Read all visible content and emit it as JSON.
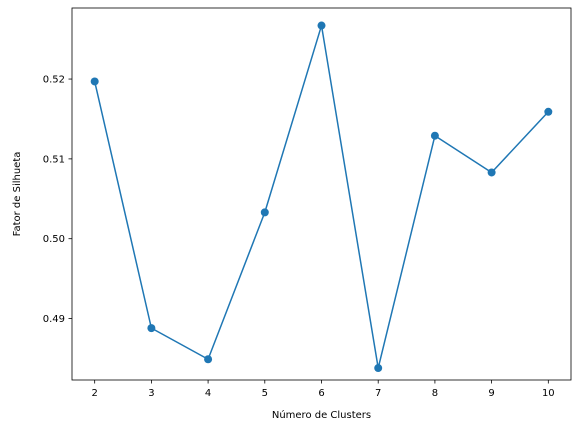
{
  "chart_data": {
    "type": "line",
    "title": "",
    "xlabel": "Número de Clusters",
    "ylabel": "Fator de Silhueta",
    "x": [
      2,
      3,
      4,
      5,
      6,
      7,
      8,
      9,
      10
    ],
    "series": [
      {
        "values": [
          0.5197,
          0.4888,
          0.4849,
          0.5033,
          0.5267,
          0.4838,
          0.5129,
          0.5083,
          0.5159
        ],
        "color": "#1f77b4",
        "marker": "circle"
      }
    ],
    "xlim": [
      1.6,
      10.4
    ],
    "ylim": [
      0.4823,
      0.5289
    ],
    "xticks": [
      2,
      3,
      4,
      5,
      6,
      7,
      8,
      9,
      10
    ],
    "yticks": [
      0.49,
      0.5,
      0.51,
      0.52
    ],
    "ytick_labels": [
      "0.49",
      "0.50",
      "0.51",
      "0.52"
    ],
    "grid": false,
    "legend": "none"
  }
}
